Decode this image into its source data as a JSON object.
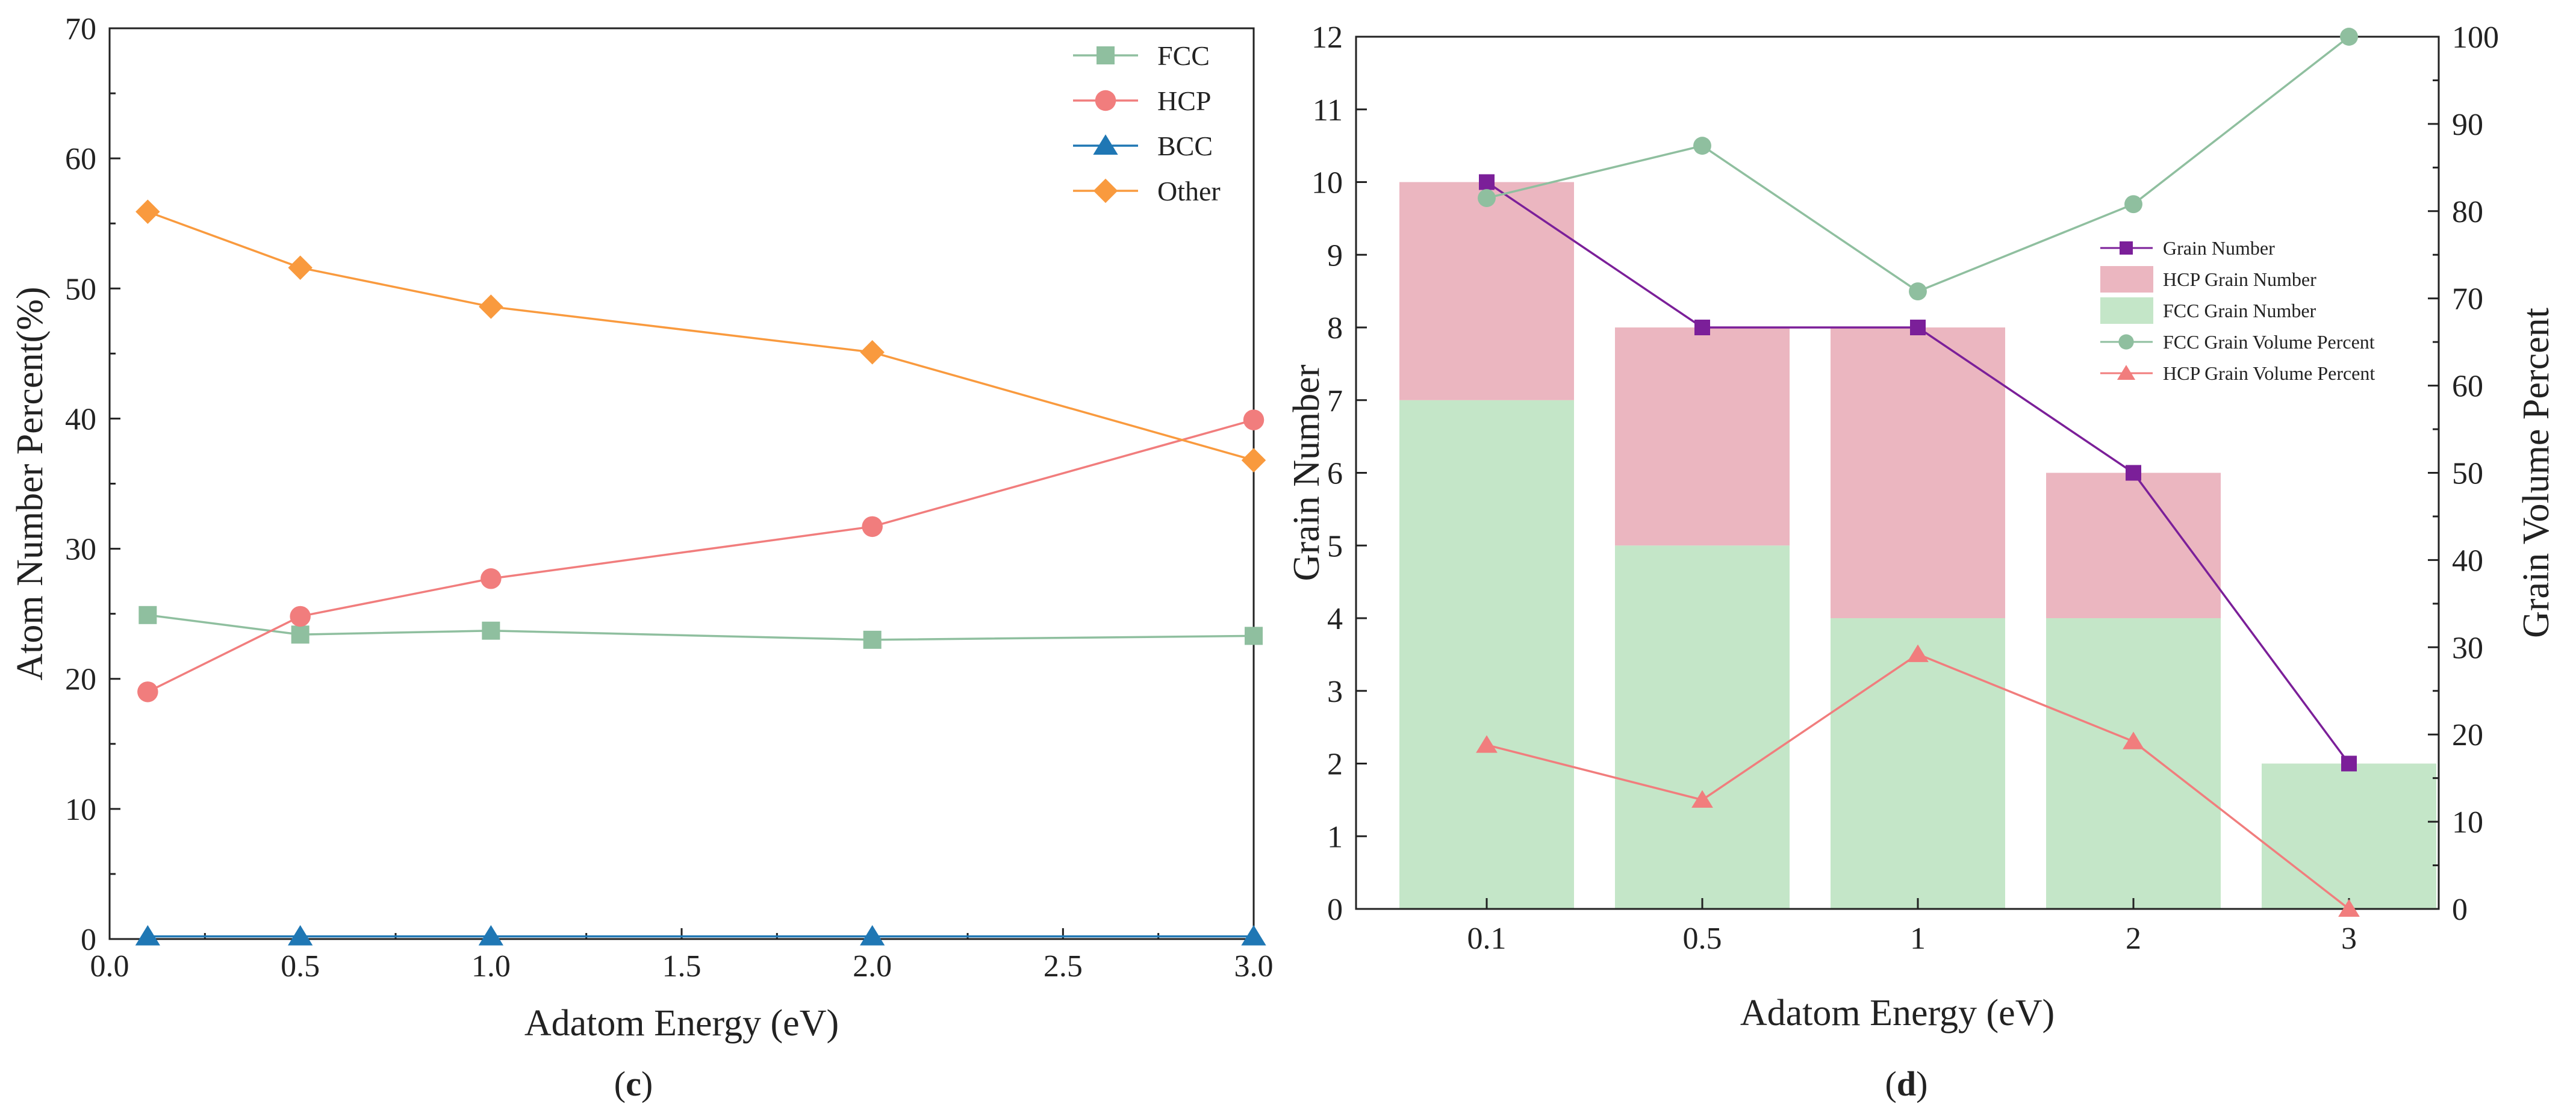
{
  "chart_data": [
    {
      "type": "line",
      "panel_label": "c",
      "xlabel": "Adatom Energy (eV)",
      "ylabel": "Atom Number Percent(%)",
      "xlim": [
        0.0,
        3.0
      ],
      "ylim": [
        0,
        70
      ],
      "xticks": [
        "0.0",
        "0.5",
        "1.0",
        "1.5",
        "2.0",
        "2.5",
        "3.0"
      ],
      "yticks": [
        "0",
        "10",
        "20",
        "30",
        "40",
        "50",
        "60",
        "70"
      ],
      "x": [
        0.1,
        0.5,
        1.0,
        2.0,
        3.0
      ],
      "legend_position": "top-right",
      "series": [
        {
          "name": "FCC",
          "marker": "square",
          "color": "#8fbf9f",
          "values": [
            24.9,
            23.4,
            23.7,
            23.0,
            23.3
          ]
        },
        {
          "name": "HCP",
          "marker": "circle",
          "color": "#f17d7d",
          "values": [
            19.0,
            24.8,
            27.7,
            31.7,
            39.9
          ]
        },
        {
          "name": "BCC",
          "marker": "triangle",
          "color": "#1f77b4",
          "values": [
            0.2,
            0.2,
            0.2,
            0.2,
            0.2
          ]
        },
        {
          "name": "Other",
          "marker": "diamond",
          "color": "#f99a3e",
          "values": [
            55.9,
            51.6,
            48.6,
            45.1,
            36.8
          ]
        }
      ]
    },
    {
      "type": "bar",
      "panel_label": "d",
      "xlabel": "Adatom Energy (eV)",
      "ylabel": "Grain Number",
      "ylabel_right": "Grain Volume Percent",
      "categories": [
        "0.1",
        "0.5",
        "1",
        "2",
        "3"
      ],
      "ylim": [
        0,
        12
      ],
      "ylim_right": [
        0,
        100
      ],
      "yticks": [
        "0",
        "1",
        "2",
        "3",
        "4",
        "5",
        "6",
        "7",
        "8",
        "9",
        "10",
        "11",
        "12"
      ],
      "yticks_right": [
        "0",
        "10",
        "20",
        "30",
        "40",
        "50",
        "60",
        "70",
        "80",
        "90",
        "100"
      ],
      "legend_position": "center-right",
      "stacked_bars": [
        {
          "name": "FCC Grain Number",
          "color": "#c4e6c8",
          "values": [
            7,
            5,
            4,
            4,
            2
          ]
        },
        {
          "name": "HCP Grain Number",
          "color": "#ebb6c0",
          "values": [
            3,
            3,
            4,
            2,
            0
          ]
        }
      ],
      "lines": [
        {
          "name": "Grain Number",
          "axis": "left",
          "marker": "square",
          "color": "#7b1f99",
          "values": [
            10,
            8,
            8,
            6,
            2
          ]
        },
        {
          "name": "FCC Grain Volume Percent",
          "axis": "right",
          "marker": "circle",
          "color": "#8fbf9f",
          "values": [
            81.5,
            87.5,
            70.8,
            80.8,
            100
          ]
        },
        {
          "name": "HCP Grain Volume Percent",
          "axis": "right",
          "marker": "triangle",
          "color": "#f17d7d",
          "values": [
            18.8,
            12.5,
            29.2,
            19.2,
            0
          ]
        }
      ],
      "legend_order": [
        "Grain Number",
        "HCP Grain Number",
        "FCC Grain Number",
        "FCC Grain Volume Percent",
        "HCP Grain Volume Percent"
      ]
    }
  ]
}
